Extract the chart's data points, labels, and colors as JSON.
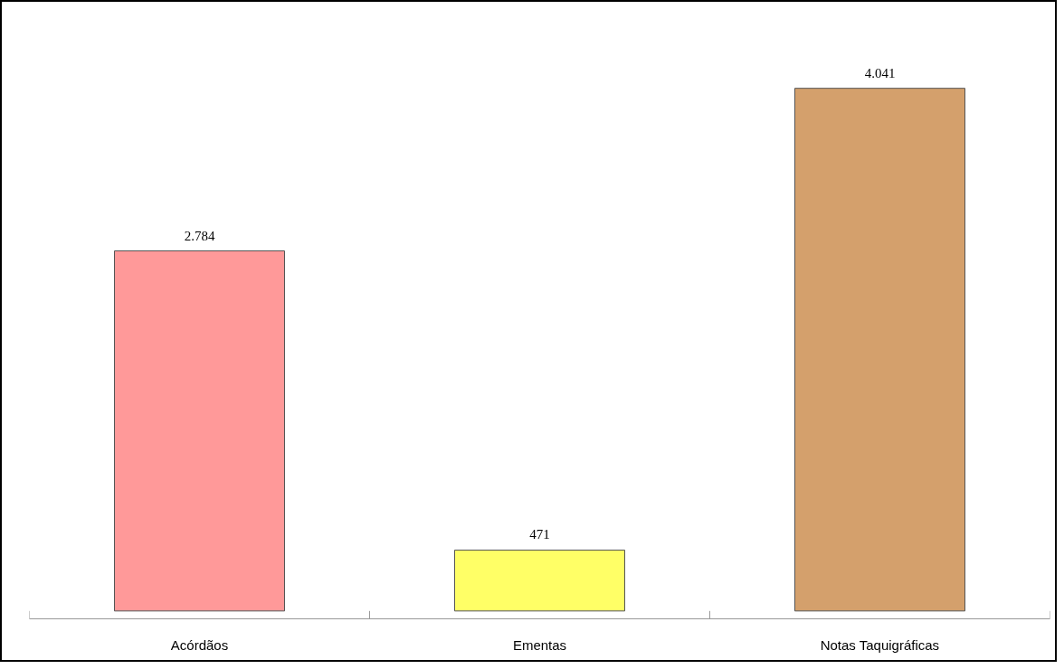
{
  "chart_data": {
    "type": "bar",
    "categories": [
      "Acórdãos",
      "Ementas",
      "Notas Taquigráficas"
    ],
    "values": [
      2784,
      471,
      4041
    ],
    "colors": [
      "#ff9999",
      "#ffff66",
      "#d4a06c"
    ],
    "value_labels": [
      "2.784",
      "471",
      "4.041"
    ],
    "grid": false
  }
}
